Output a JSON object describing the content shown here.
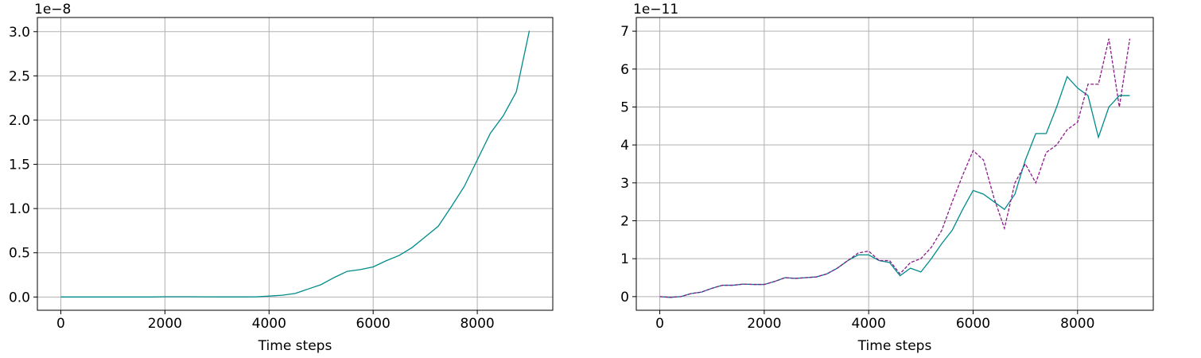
{
  "chart_data": [
    {
      "type": "line",
      "xlabel": "Time steps",
      "offset_text": "1e−8",
      "x": [
        0,
        250,
        500,
        750,
        1000,
        1250,
        1500,
        1750,
        2000,
        2250,
        2500,
        2750,
        3000,
        3250,
        3500,
        3750,
        4000,
        4250,
        4500,
        4750,
        5000,
        5250,
        5500,
        5750,
        6000,
        6250,
        6500,
        6750,
        7000,
        7250,
        7500,
        7750,
        8000,
        8250,
        8500,
        8750,
        9000
      ],
      "series": [
        {
          "color": "#008b8b",
          "dash": false,
          "values": [
            0,
            0,
            0,
            0,
            0,
            0,
            0,
            0,
            0.003,
            0.003,
            0.003,
            0.002,
            0.001,
            0.001,
            0.001,
            0.002,
            0.01,
            0.02,
            0.04,
            0.09,
            0.14,
            0.22,
            0.29,
            0.31,
            0.34,
            0.41,
            0.47,
            0.56,
            0.68,
            0.8,
            1.02,
            1.25,
            1.55,
            1.85,
            2.05,
            2.32,
            3.01
          ]
        }
      ],
      "xlim": [
        -450,
        9450
      ],
      "xticks": [
        0,
        2000,
        4000,
        6000,
        8000
      ],
      "ylim": [
        -0.15,
        3.16
      ],
      "yticks": [
        {
          "value": 0,
          "label": "0.0"
        },
        0.5,
        {
          "value": 1,
          "label": "1.0"
        },
        1.5,
        {
          "value": 2,
          "label": "2.0"
        },
        2.5,
        {
          "value": 3,
          "label": "3.0"
        }
      ],
      "grid": true
    },
    {
      "type": "line",
      "xlabel": "Time steps",
      "offset_text": "1e−11",
      "x": [
        0,
        200,
        400,
        600,
        800,
        1000,
        1200,
        1400,
        1600,
        1800,
        2000,
        2200,
        2400,
        2600,
        2800,
        3000,
        3200,
        3400,
        3600,
        3800,
        4000,
        4200,
        4400,
        4600,
        4800,
        5000,
        5200,
        5400,
        5600,
        5800,
        6000,
        6200,
        6400,
        6600,
        6800,
        7000,
        7200,
        7400,
        7600,
        7800,
        8000,
        8200,
        8400,
        8600,
        8800,
        9000
      ],
      "series": [
        {
          "color": "#008b8b",
          "dash": false,
          "values": [
            0,
            -0.02,
            0,
            0.08,
            0.12,
            0.22,
            0.3,
            0.3,
            0.33,
            0.32,
            0.32,
            0.4,
            0.5,
            0.48,
            0.5,
            0.52,
            0.6,
            0.75,
            0.95,
            1.1,
            1.1,
            0.95,
            0.9,
            0.55,
            0.75,
            0.65,
            1.0,
            1.4,
            1.75,
            2.3,
            2.8,
            2.7,
            2.5,
            2.3,
            2.7,
            3.6,
            4.3,
            4.3,
            5.0,
            5.8,
            5.5,
            5.3,
            4.2,
            5.0,
            5.3,
            5.3
          ]
        },
        {
          "color": "#8b1a8b",
          "dash": true,
          "values": [
            0,
            -0.02,
            0,
            0.08,
            0.12,
            0.22,
            0.3,
            0.3,
            0.33,
            0.32,
            0.32,
            0.4,
            0.5,
            0.48,
            0.5,
            0.52,
            0.6,
            0.75,
            0.95,
            1.15,
            1.2,
            0.95,
            0.95,
            0.6,
            0.9,
            1.0,
            1.3,
            1.75,
            2.5,
            3.2,
            3.85,
            3.6,
            2.6,
            1.8,
            3.0,
            3.5,
            3.0,
            3.8,
            4.0,
            4.4,
            4.6,
            5.6,
            5.6,
            6.8,
            5.0,
            6.8
          ]
        }
      ],
      "xlim": [
        -450,
        9450
      ],
      "xticks": [
        0,
        2000,
        4000,
        6000,
        8000
      ],
      "ylim": [
        -0.36,
        7.36
      ],
      "yticks": [
        0,
        1,
        2,
        3,
        4,
        5,
        6,
        7
      ],
      "grid": true
    }
  ]
}
